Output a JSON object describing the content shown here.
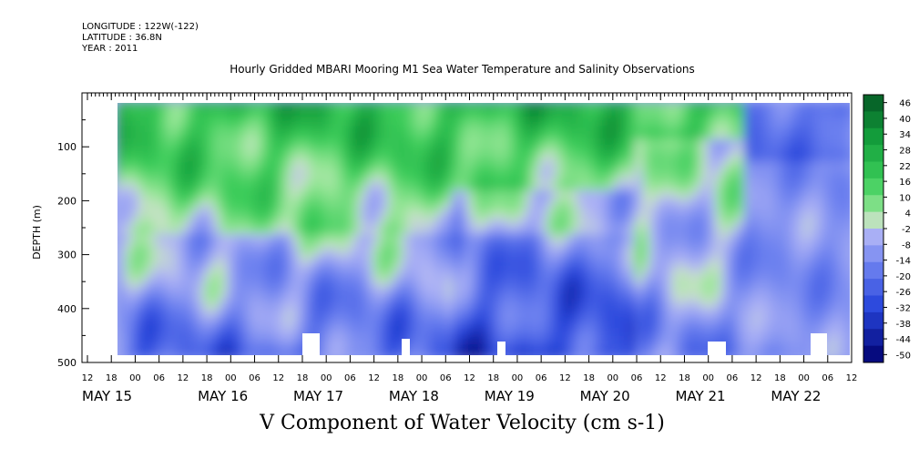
{
  "header": {
    "longitude": "LONGITUDE : 122W(-122)",
    "latitude": "LATITUDE : 36.8N",
    "year": "YEAR : 2011",
    "title": "Hourly Gridded MBARI Mooring M1 Sea Water Temperature and Salinity Observations"
  },
  "chart_data": {
    "type": "heatmap",
    "title": "Hourly Gridded MBARI Mooring M1 Sea Water Temperature and Salinity Observations",
    "subtitle": "V Component of Water Velocity (cm s-1)",
    "xlabel": "",
    "ylabel": "DEPTH (m)",
    "ylim": [
      500,
      0
    ],
    "y_ticks": [
      100,
      200,
      300,
      400,
      500
    ],
    "x_hour_ticks": [
      "12",
      "18",
      "00",
      "06",
      "12",
      "18",
      "00",
      "06",
      "12",
      "18",
      "00",
      "06",
      "12",
      "18",
      "00",
      "06",
      "12",
      "18",
      "00",
      "06",
      "12",
      "18",
      "00",
      "06",
      "12",
      "18",
      "00",
      "06",
      "12",
      "18",
      "00",
      "06",
      "12"
    ],
    "x_date_labels": [
      "MAY 15",
      "MAY 16",
      "MAY 17",
      "MAY 18",
      "MAY 19",
      "MAY 20",
      "MAY 21",
      "MAY 22"
    ],
    "colorbar": {
      "levels": [
        46,
        40,
        34,
        28,
        22,
        16,
        10,
        4,
        -2,
        -8,
        -14,
        -20,
        -26,
        -32,
        -38,
        -44,
        -50
      ],
      "range": [
        -50,
        50
      ]
    },
    "depth_profile_summary": {
      "near_surface_0_250m": "positive (green), about 10 to 30",
      "deep_250_480m": "mostly negative (blue), about -5 to -20",
      "late_period_may21_22": "negative near surface (blue), about -15 to -25"
    }
  }
}
